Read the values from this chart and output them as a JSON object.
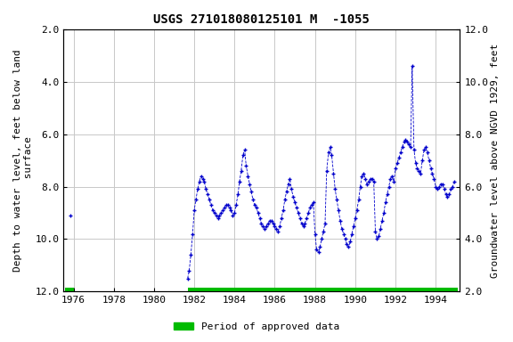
{
  "title": "USGS 271018080125101 M  -1055",
  "ylabel_left": "Depth to water level, feet below land\n surface",
  "ylabel_right": "Groundwater level above NGVD 1929, feet",
  "ylim_left": [
    12.0,
    2.0
  ],
  "ylim_right": [
    2.0,
    12.0
  ],
  "xlim": [
    1975.5,
    1995.2
  ],
  "yticks_left": [
    2.0,
    4.0,
    6.0,
    8.0,
    10.0,
    12.0
  ],
  "yticks_right": [
    2.0,
    4.0,
    6.0,
    8.0,
    10.0,
    12.0
  ],
  "xticks": [
    1976,
    1978,
    1980,
    1982,
    1984,
    1986,
    1988,
    1990,
    1992,
    1994
  ],
  "data_color": "#0000cc",
  "approved_color": "#00bb00",
  "background_color": "#ffffff",
  "grid_color": "#c8c8c8",
  "title_fontsize": 10,
  "axis_fontsize": 8,
  "tick_fontsize": 8,
  "approved_bar_y": 12.0,
  "approved_bar_xstart": 1981.7,
  "approved_bar_xend": 1995.1,
  "approved_bar_x2start": 1975.6,
  "approved_bar_x2end": 1976.0,
  "segment1": [
    [
      1975.83,
      9.1
    ]
  ],
  "segment2": [
    [
      1981.67,
      11.5
    ],
    [
      1981.75,
      11.2
    ],
    [
      1981.83,
      10.6
    ],
    [
      1981.92,
      9.8
    ],
    [
      1982.0,
      8.9
    ],
    [
      1982.08,
      8.5
    ],
    [
      1982.17,
      8.1
    ],
    [
      1982.25,
      7.8
    ],
    [
      1982.33,
      7.6
    ],
    [
      1982.42,
      7.7
    ],
    [
      1982.5,
      7.8
    ],
    [
      1982.58,
      8.1
    ],
    [
      1982.67,
      8.3
    ],
    [
      1982.75,
      8.5
    ],
    [
      1982.83,
      8.7
    ],
    [
      1982.92,
      8.9
    ],
    [
      1983.0,
      9.0
    ],
    [
      1983.08,
      9.1
    ],
    [
      1983.17,
      9.2
    ],
    [
      1983.25,
      9.1
    ],
    [
      1983.33,
      9.0
    ],
    [
      1983.42,
      8.9
    ],
    [
      1983.5,
      8.8
    ],
    [
      1983.58,
      8.7
    ],
    [
      1983.67,
      8.7
    ],
    [
      1983.75,
      8.8
    ],
    [
      1983.83,
      8.9
    ],
    [
      1983.92,
      9.1
    ],
    [
      1984.0,
      9.0
    ],
    [
      1984.08,
      8.7
    ],
    [
      1984.17,
      8.3
    ],
    [
      1984.25,
      7.8
    ],
    [
      1984.33,
      7.4
    ],
    [
      1984.42,
      6.8
    ],
    [
      1984.5,
      6.6
    ],
    [
      1984.58,
      7.2
    ],
    [
      1984.67,
      7.6
    ],
    [
      1984.75,
      7.9
    ],
    [
      1984.83,
      8.2
    ],
    [
      1984.92,
      8.5
    ],
    [
      1985.0,
      8.7
    ],
    [
      1985.08,
      8.8
    ],
    [
      1985.17,
      9.0
    ],
    [
      1985.25,
      9.2
    ],
    [
      1985.33,
      9.4
    ],
    [
      1985.42,
      9.5
    ],
    [
      1985.5,
      9.6
    ],
    [
      1985.58,
      9.5
    ],
    [
      1985.67,
      9.4
    ],
    [
      1985.75,
      9.3
    ],
    [
      1985.83,
      9.3
    ],
    [
      1985.92,
      9.4
    ],
    [
      1986.0,
      9.5
    ],
    [
      1986.08,
      9.6
    ],
    [
      1986.17,
      9.7
    ],
    [
      1986.25,
      9.5
    ],
    [
      1986.33,
      9.2
    ],
    [
      1986.42,
      8.9
    ],
    [
      1986.5,
      8.5
    ],
    [
      1986.58,
      8.2
    ],
    [
      1986.67,
      7.9
    ],
    [
      1986.75,
      7.7
    ],
    [
      1986.83,
      8.1
    ],
    [
      1986.92,
      8.4
    ],
    [
      1987.0,
      8.6
    ],
    [
      1987.08,
      8.8
    ],
    [
      1987.17,
      9.0
    ],
    [
      1987.25,
      9.2
    ],
    [
      1987.33,
      9.4
    ],
    [
      1987.42,
      9.5
    ],
    [
      1987.5,
      9.4
    ],
    [
      1987.58,
      9.2
    ],
    [
      1987.67,
      9.0
    ],
    [
      1987.75,
      8.8
    ],
    [
      1987.83,
      8.7
    ],
    [
      1987.92,
      8.6
    ],
    [
      1988.0,
      9.8
    ],
    [
      1988.08,
      10.4
    ],
    [
      1988.17,
      10.5
    ],
    [
      1988.25,
      10.3
    ],
    [
      1988.33,
      10.0
    ],
    [
      1988.42,
      9.7
    ],
    [
      1988.5,
      9.4
    ],
    [
      1988.58,
      7.4
    ],
    [
      1988.67,
      6.7
    ],
    [
      1988.75,
      6.5
    ],
    [
      1988.83,
      6.8
    ],
    [
      1988.92,
      7.5
    ],
    [
      1989.0,
      8.1
    ],
    [
      1989.08,
      8.5
    ],
    [
      1989.17,
      8.9
    ],
    [
      1989.25,
      9.3
    ],
    [
      1989.33,
      9.6
    ],
    [
      1989.42,
      9.8
    ],
    [
      1989.5,
      10.0
    ],
    [
      1989.58,
      10.2
    ],
    [
      1989.67,
      10.3
    ],
    [
      1989.75,
      10.1
    ],
    [
      1989.83,
      9.8
    ],
    [
      1989.92,
      9.5
    ],
    [
      1990.0,
      9.2
    ],
    [
      1990.08,
      8.9
    ],
    [
      1990.17,
      8.5
    ],
    [
      1990.25,
      8.0
    ],
    [
      1990.33,
      7.6
    ],
    [
      1990.42,
      7.5
    ],
    [
      1990.5,
      7.7
    ],
    [
      1990.58,
      7.9
    ],
    [
      1990.67,
      7.8
    ],
    [
      1990.75,
      7.7
    ],
    [
      1990.83,
      7.7
    ],
    [
      1990.92,
      7.8
    ],
    [
      1991.0,
      9.7
    ],
    [
      1991.08,
      10.0
    ],
    [
      1991.17,
      9.9
    ],
    [
      1991.25,
      9.6
    ],
    [
      1991.33,
      9.3
    ],
    [
      1991.42,
      9.0
    ],
    [
      1991.5,
      8.6
    ],
    [
      1991.58,
      8.3
    ],
    [
      1991.67,
      8.0
    ],
    [
      1991.75,
      7.7
    ],
    [
      1991.83,
      7.6
    ],
    [
      1991.92,
      7.8
    ],
    [
      1992.0,
      7.3
    ],
    [
      1992.08,
      7.1
    ],
    [
      1992.17,
      6.9
    ],
    [
      1992.25,
      6.7
    ],
    [
      1992.33,
      6.5
    ],
    [
      1992.42,
      6.3
    ],
    [
      1992.5,
      6.2
    ],
    [
      1992.58,
      6.3
    ],
    [
      1992.67,
      6.4
    ],
    [
      1992.75,
      6.5
    ],
    [
      1992.83,
      3.4
    ],
    [
      1992.92,
      6.6
    ],
    [
      1993.0,
      7.1
    ],
    [
      1993.08,
      7.3
    ],
    [
      1993.17,
      7.4
    ],
    [
      1993.25,
      7.5
    ],
    [
      1993.33,
      7.0
    ],
    [
      1993.42,
      6.6
    ],
    [
      1993.5,
      6.5
    ],
    [
      1993.58,
      6.7
    ],
    [
      1993.67,
      7.0
    ],
    [
      1993.75,
      7.3
    ],
    [
      1993.83,
      7.5
    ],
    [
      1993.92,
      7.7
    ],
    [
      1994.0,
      8.0
    ],
    [
      1994.08,
      8.1
    ],
    [
      1994.17,
      8.0
    ],
    [
      1994.25,
      7.9
    ],
    [
      1994.33,
      7.9
    ],
    [
      1994.42,
      8.1
    ],
    [
      1994.5,
      8.3
    ],
    [
      1994.58,
      8.4
    ],
    [
      1994.67,
      8.3
    ],
    [
      1994.75,
      8.1
    ],
    [
      1994.83,
      8.0
    ],
    [
      1994.92,
      7.8
    ]
  ]
}
